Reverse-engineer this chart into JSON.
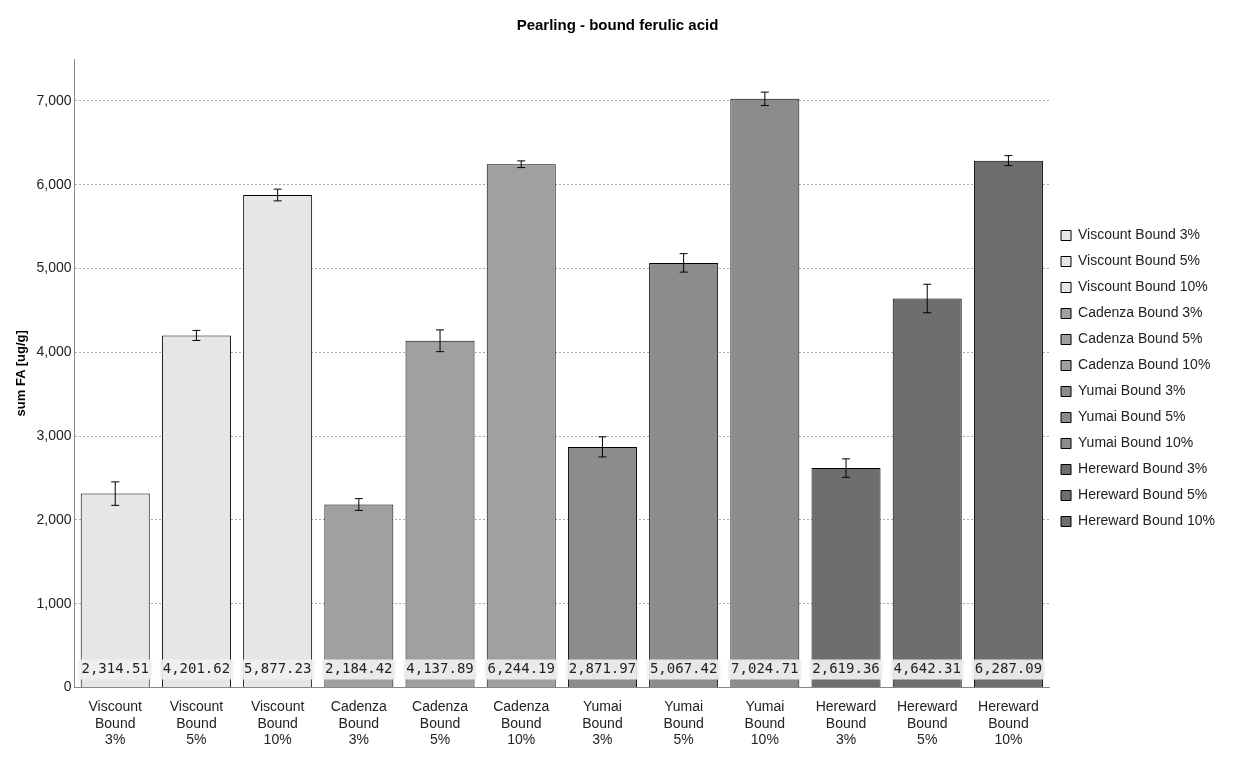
{
  "chart_data": {
    "type": "bar",
    "title": "Pearling - bound ferulic acid",
    "ylabel": "sum FA [ug/g]",
    "categories": [
      "Viscount Bound 3%",
      "Viscount Bound 5%",
      "Viscount Bound 10%",
      "Cadenza Bound 3%",
      "Cadenza Bound 5%",
      "Cadenza Bound 10%",
      "Yumai Bound 3%",
      "Yumai Bound 5%",
      "Yumai Bound 10%",
      "Hereward Bound 3%",
      "Hereward Bound 5%",
      "Hereward Bound 10%"
    ],
    "series": [
      {
        "name": "Viscount Bound 3%",
        "color": "#e6e6e6",
        "values": [
          2314.51,
          null,
          null,
          null,
          null,
          null,
          null,
          null,
          null,
          null,
          null,
          null
        ],
        "errors": [
          140,
          null,
          null,
          null,
          null,
          null,
          null,
          null,
          null,
          null,
          null,
          null
        ]
      },
      {
        "name": "Viscount Bound 5%",
        "color": "#e6e6e6",
        "values": [
          null,
          4201.62,
          null,
          null,
          null,
          null,
          null,
          null,
          null,
          null,
          null,
          null
        ],
        "errors": [
          null,
          60,
          null,
          null,
          null,
          null,
          null,
          null,
          null,
          null,
          null,
          null
        ]
      },
      {
        "name": "Viscount Bound 10%",
        "color": "#e6e6e6",
        "values": [
          null,
          null,
          5877.23,
          null,
          null,
          null,
          null,
          null,
          null,
          null,
          null,
          null
        ],
        "errors": [
          null,
          null,
          70,
          null,
          null,
          null,
          null,
          null,
          null,
          null,
          null,
          null
        ]
      },
      {
        "name": "Cadenza Bound 3%",
        "color": "#a0a0a0",
        "values": [
          null,
          null,
          null,
          2184.42,
          null,
          null,
          null,
          null,
          null,
          null,
          null,
          null
        ],
        "errors": [
          null,
          null,
          null,
          70,
          null,
          null,
          null,
          null,
          null,
          null,
          null,
          null
        ]
      },
      {
        "name": "Cadenza Bound 5%",
        "color": "#a0a0a0",
        "values": [
          null,
          null,
          null,
          null,
          4137.89,
          null,
          null,
          null,
          null,
          null,
          null,
          null
        ],
        "errors": [
          null,
          null,
          null,
          null,
          130,
          null,
          null,
          null,
          null,
          null,
          null,
          null
        ]
      },
      {
        "name": "Cadenza Bound 10%",
        "color": "#a0a0a0",
        "values": [
          null,
          null,
          null,
          null,
          null,
          6244.19,
          null,
          null,
          null,
          null,
          null,
          null
        ],
        "errors": [
          null,
          null,
          null,
          null,
          null,
          40,
          null,
          null,
          null,
          null,
          null,
          null
        ]
      },
      {
        "name": "Yumai Bound 3%",
        "color": "#8c8c8c",
        "values": [
          null,
          null,
          null,
          null,
          null,
          null,
          2871.97,
          null,
          null,
          null,
          null,
          null
        ],
        "errors": [
          null,
          null,
          null,
          null,
          null,
          null,
          120,
          null,
          null,
          null,
          null,
          null
        ]
      },
      {
        "name": "Yumai Bound 5%",
        "color": "#8c8c8c",
        "values": [
          null,
          null,
          null,
          null,
          null,
          null,
          null,
          5067.42,
          null,
          null,
          null,
          null
        ],
        "errors": [
          null,
          null,
          null,
          null,
          null,
          null,
          null,
          110,
          null,
          null,
          null,
          null
        ]
      },
      {
        "name": "Yumai Bound 10%",
        "color": "#8c8c8c",
        "values": [
          null,
          null,
          null,
          null,
          null,
          null,
          null,
          null,
          7024.71,
          null,
          null,
          null
        ],
        "errors": [
          null,
          null,
          null,
          null,
          null,
          null,
          null,
          null,
          80,
          null,
          null,
          null
        ]
      },
      {
        "name": "Hereward Bound 3%",
        "color": "#6e6e6e",
        "values": [
          null,
          null,
          null,
          null,
          null,
          null,
          null,
          null,
          null,
          2619.36,
          null,
          null
        ],
        "errors": [
          null,
          null,
          null,
          null,
          null,
          null,
          null,
          null,
          null,
          110,
          null,
          null
        ]
      },
      {
        "name": "Hereward Bound 5%",
        "color": "#6e6e6e",
        "values": [
          null,
          null,
          null,
          null,
          null,
          null,
          null,
          null,
          null,
          null,
          4642.31,
          null
        ],
        "errors": [
          null,
          null,
          null,
          null,
          null,
          null,
          null,
          null,
          null,
          null,
          170,
          null
        ]
      },
      {
        "name": "Hereward Bound 10%",
        "color": "#6e6e6e",
        "values": [
          null,
          null,
          null,
          null,
          null,
          null,
          null,
          null,
          null,
          null,
          null,
          6287.09
        ],
        "errors": [
          null,
          null,
          null,
          null,
          null,
          null,
          null,
          null,
          null,
          null,
          null,
          60
        ]
      }
    ],
    "ylim": [
      0,
      7500
    ],
    "yticks": [
      {
        "value": 0,
        "label": "0"
      },
      {
        "value": 1000,
        "label": "1,000"
      },
      {
        "value": 2000,
        "label": "2,000"
      },
      {
        "value": 3000,
        "label": "3,000"
      },
      {
        "value": 4000,
        "label": "4,000"
      },
      {
        "value": 5000,
        "label": "5,000"
      },
      {
        "value": 6000,
        "label": "6,000"
      },
      {
        "value": 7000,
        "label": "7,000"
      }
    ],
    "value_labels": [
      "2,314.51",
      "4,201.62",
      "5,877.23",
      "2,184.42",
      "4,137.89",
      "6,244.19",
      "2,871.97",
      "5,067.42",
      "7,024.71",
      "2,619.36",
      "4,642.31",
      "6,287.09"
    ],
    "grid": "y",
    "legend": "right"
  }
}
